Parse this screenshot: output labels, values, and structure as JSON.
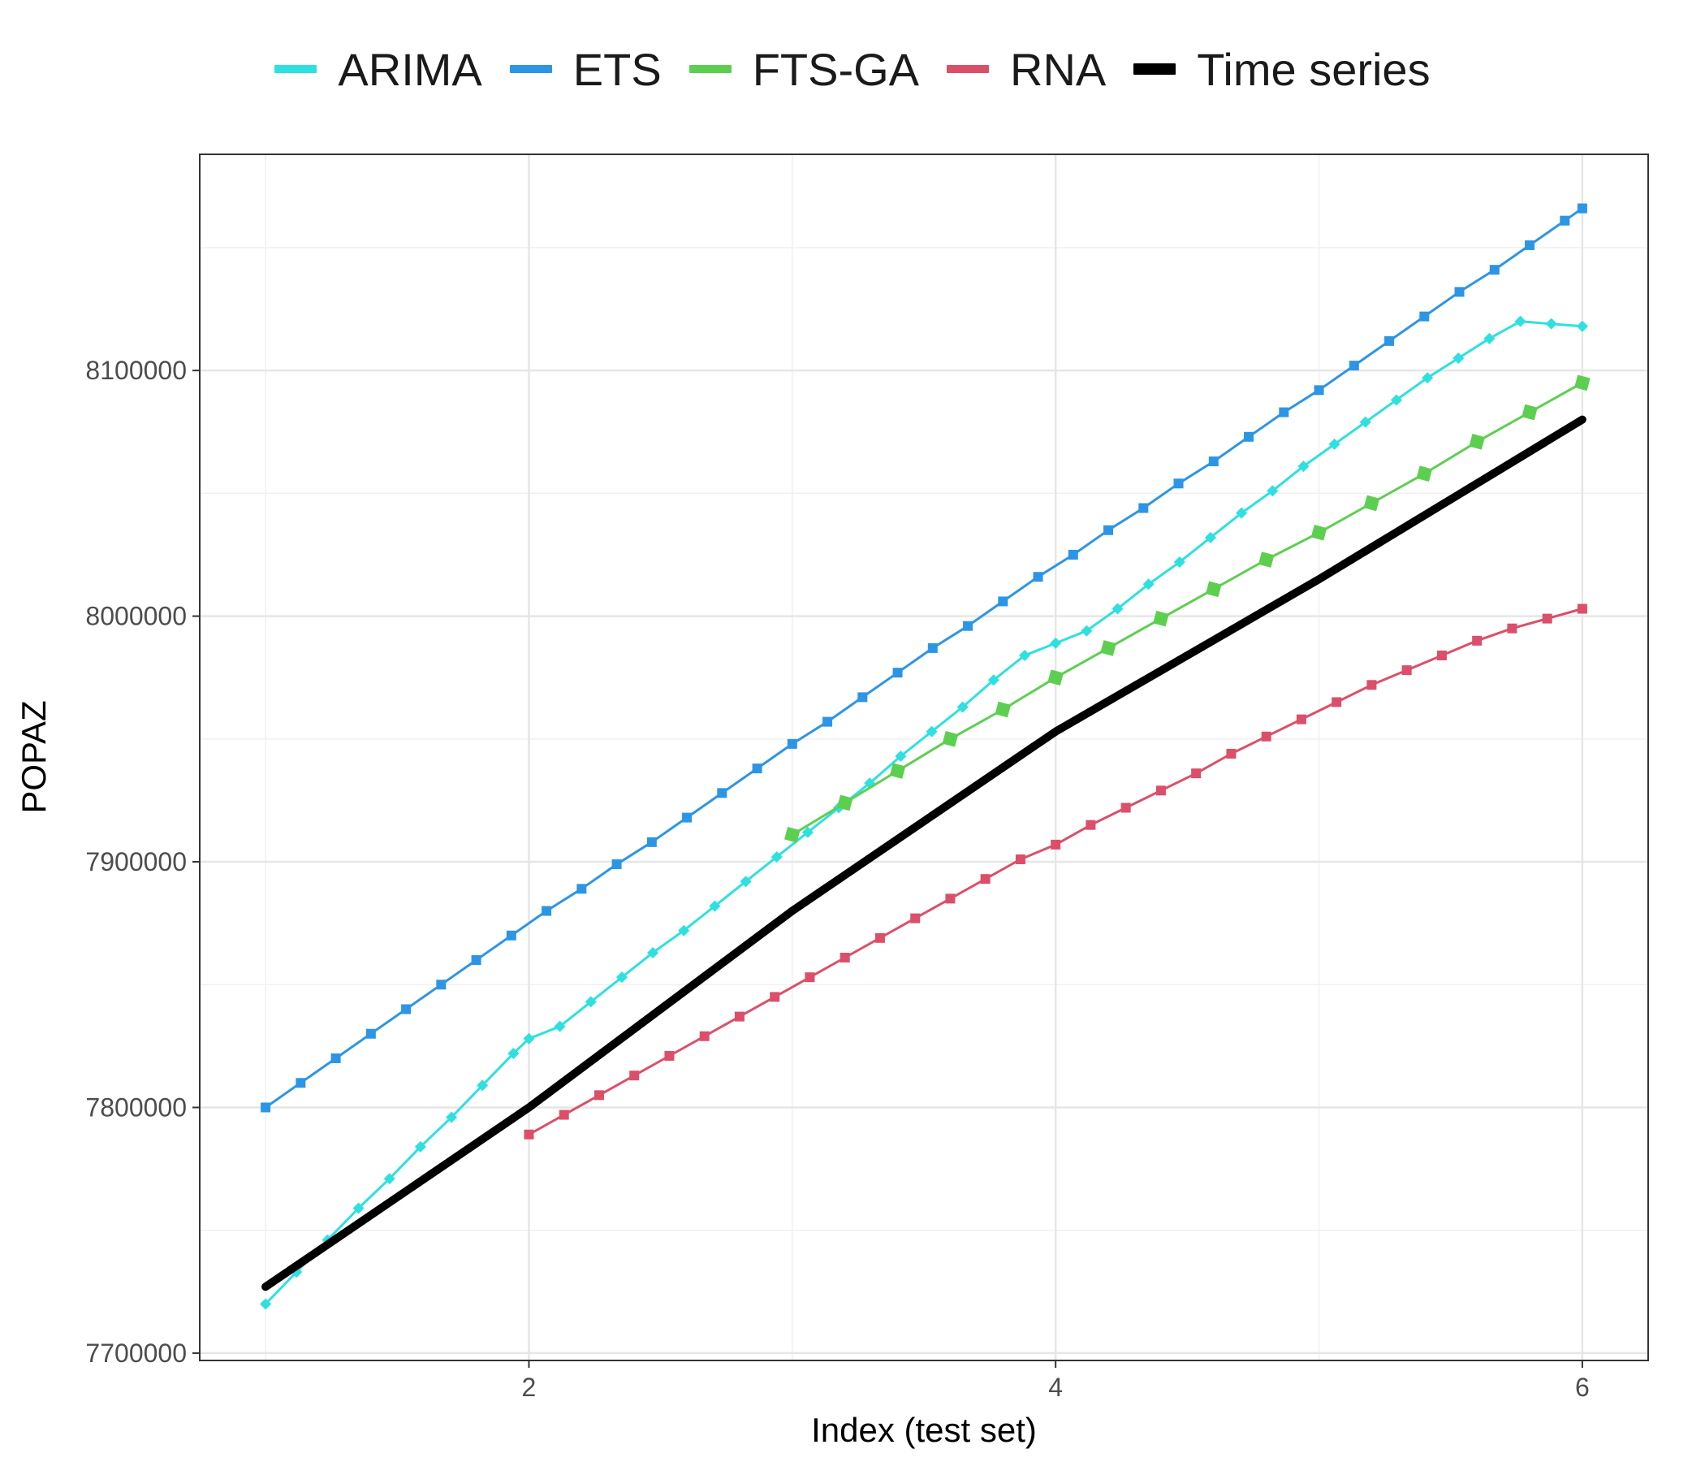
{
  "legend": [
    {
      "name": "ARIMA",
      "color": "#2ee0e0"
    },
    {
      "name": "ETS",
      "color": "#2d95e6"
    },
    {
      "name": "FTS-GA",
      "color": "#5dcf50"
    },
    {
      "name": "RNA",
      "color": "#dc4f6a"
    },
    {
      "name": "Time series",
      "color": "#000000"
    }
  ],
  "chart_data": {
    "type": "line",
    "title": "",
    "xlabel": "Index (test set)",
    "ylabel": "POPAZ",
    "xlim": [
      0.75,
      6.25
    ],
    "ylim": [
      7697000,
      8188000
    ],
    "x_ticks": [
      2,
      4,
      6
    ],
    "x_tick_labels": [
      "2",
      "4",
      "6"
    ],
    "y_ticks": [
      7700000,
      7800000,
      7900000,
      8000000,
      8100000
    ],
    "y_tick_labels": [
      "7700000",
      "7800000",
      "7900000",
      "8000000",
      "8100000"
    ],
    "grid": true,
    "legend_position": "top",
    "series": [
      {
        "name": "ARIMA",
        "color": "#2ee0e0",
        "x": [
          1.0,
          1.1176,
          1.2353,
          1.3529,
          1.4706,
          1.5882,
          1.7059,
          1.8235,
          1.9412,
          2.0,
          2.1176,
          2.2353,
          2.3529,
          2.4706,
          2.5882,
          2.7059,
          2.8235,
          2.9412,
          3.0588,
          3.1765,
          3.2941,
          3.4118,
          3.5294,
          3.6471,
          3.7647,
          3.8824,
          4.0,
          4.1176,
          4.2353,
          4.3529,
          4.4706,
          4.5882,
          4.7059,
          4.8235,
          4.9412,
          5.0588,
          5.1765,
          5.2941,
          5.4118,
          5.5294,
          5.6471,
          5.7647,
          5.8824,
          6.0
        ],
        "values": [
          7720000,
          7733000,
          7746000,
          7759000,
          7771000,
          7784000,
          7796000,
          7809000,
          7822000,
          7828000,
          7833000,
          7843000,
          7853000,
          7863000,
          7872000,
          7882000,
          7892000,
          7902000,
          7912000,
          7922000,
          7932000,
          7943000,
          7953000,
          7963000,
          7974000,
          7984000,
          7989000,
          7994000,
          8003000,
          8013000,
          8022000,
          8032000,
          8042000,
          8051000,
          8061000,
          8070000,
          8079000,
          8088000,
          8097000,
          8105000,
          8113000,
          8120000,
          8119000,
          8118000
        ]
      },
      {
        "name": "ETS",
        "color": "#2d95e6",
        "x": [
          1.0,
          1.1333,
          1.2667,
          1.4,
          1.5333,
          1.6667,
          1.8,
          1.9333,
          2.0667,
          2.2,
          2.3333,
          2.4667,
          2.6,
          2.7333,
          2.8667,
          3.0,
          3.1333,
          3.2667,
          3.4,
          3.5333,
          3.6667,
          3.8,
          3.9333,
          4.0667,
          4.2,
          4.3333,
          4.4667,
          4.6,
          4.7333,
          4.8667,
          5.0,
          5.1333,
          5.2667,
          5.4,
          5.5333,
          5.6667,
          5.8,
          5.9333,
          6.0
        ],
        "values": [
          7800000,
          7810000,
          7820000,
          7830000,
          7840000,
          7850000,
          7860000,
          7870000,
          7880000,
          7889000,
          7899000,
          7908000,
          7918000,
          7928000,
          7938000,
          7948000,
          7957000,
          7967000,
          7977000,
          7987000,
          7996000,
          8006000,
          8016000,
          8025000,
          8035000,
          8044000,
          8054000,
          8063000,
          8073000,
          8083000,
          8092000,
          8102000,
          8112000,
          8122000,
          8132000,
          8141000,
          8151000,
          8161000,
          8166000
        ]
      },
      {
        "name": "FTS-GA",
        "color": "#5dcf50",
        "x": [
          3.0,
          3.2,
          3.4,
          3.6,
          3.8,
          4.0,
          4.2,
          4.4,
          4.6,
          4.8,
          5.0,
          5.2,
          5.4,
          5.6,
          5.8,
          6.0
        ],
        "values": [
          7911000,
          7924000,
          7937000,
          7950000,
          7962000,
          7975000,
          7987000,
          7999000,
          8011000,
          8023000,
          8034000,
          8046000,
          8058000,
          8071000,
          8083000,
          8095000
        ]
      },
      {
        "name": "RNA",
        "color": "#dc4f6a",
        "x": [
          2.0,
          2.1333,
          2.2667,
          2.4,
          2.5333,
          2.6667,
          2.8,
          2.9333,
          3.0667,
          3.2,
          3.3333,
          3.4667,
          3.6,
          3.7333,
          3.8667,
          4.0,
          4.1333,
          4.2667,
          4.4,
          4.5333,
          4.6667,
          4.8,
          4.9333,
          5.0667,
          5.2,
          5.3333,
          5.4667,
          5.6,
          5.7333,
          5.8667,
          6.0
        ],
        "values": [
          7789000,
          7797000,
          7805000,
          7813000,
          7821000,
          7829000,
          7837000,
          7845000,
          7853000,
          7861000,
          7869000,
          7877000,
          7885000,
          7893000,
          7901000,
          7907000,
          7915000,
          7922000,
          7929000,
          7936000,
          7944000,
          7951000,
          7958000,
          7965000,
          7972000,
          7978000,
          7984000,
          7990000,
          7995000,
          7999000,
          8003000
        ]
      },
      {
        "name": "Time series",
        "color": "#000000",
        "x": [
          1,
          2,
          3,
          4,
          5,
          6
        ],
        "values": [
          7727000,
          7800000,
          7880000,
          7953000,
          8015000,
          8080000
        ]
      }
    ]
  }
}
